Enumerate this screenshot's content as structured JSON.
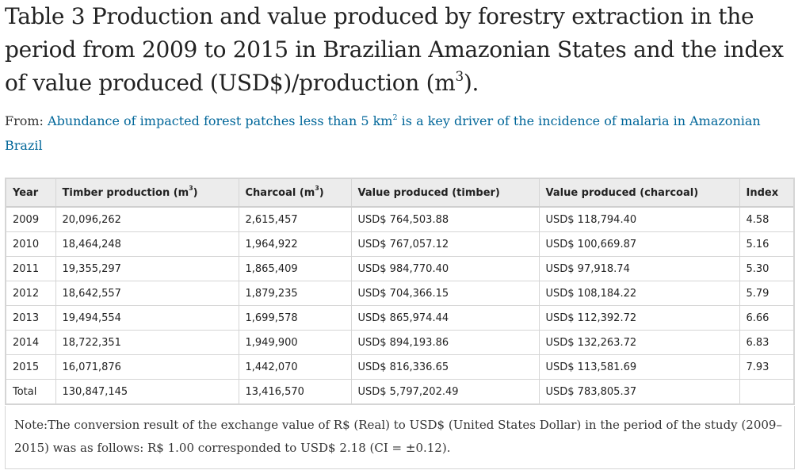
{
  "title": {
    "part1": "Table 3 Production and value produced by forestry extraction in the period from 2009 to 2015 in Brazilian Amazonian States and the index of value produced (USD$)/production (m",
    "sup": "3",
    "part2": ")."
  },
  "from": {
    "prefix": "From: ",
    "link_part1": "Abundance of impacted forest patches less than 5 km",
    "link_sup": "2",
    "link_part2": " is a key driver of the incidence of malaria in Amazonian Brazil"
  },
  "table": {
    "headers": {
      "year": "Year",
      "timber": "Timber production (m",
      "timber_sup": "3",
      "timber_close": ")",
      "charcoal": "Charcoal (m",
      "charcoal_sup": "3",
      "charcoal_close": ")",
      "value_timber": "Value produced (timber)",
      "value_charcoal": "Value produced (charcoal)",
      "index": "Index"
    },
    "rows": [
      [
        "2009",
        "20,096,262",
        "2,615,457",
        "USD$ 764,503.88",
        "USD$ 118,794.40",
        "4.58"
      ],
      [
        "2010",
        "18,464,248",
        "1,964,922",
        "USD$ 767,057.12",
        "USD$ 100,669.87",
        "5.16"
      ],
      [
        "2011",
        "19,355,297",
        "1,865,409",
        "USD$ 984,770.40",
        "USD$ 97,918.74",
        "5.30"
      ],
      [
        "2012",
        "18,642,557",
        "1,879,235",
        "USD$ 704,366.15",
        "USD$ 108,184.22",
        "5.79"
      ],
      [
        "2013",
        "19,494,554",
        "1,699,578",
        "USD$ 865,974.44",
        "USD$ 112,392.72",
        "6.66"
      ],
      [
        "2014",
        "18,722,351",
        "1,949,900",
        "USD$ 894,193.86",
        "USD$ 132,263.72",
        "6.83"
      ],
      [
        "2015",
        "16,071,876",
        "1,442,070",
        "USD$ 816,336.65",
        "USD$ 113,581.69",
        "7.93"
      ],
      [
        "Total",
        "130,847,145",
        "13,416,570",
        "USD$ 5,797,202.49",
        "USD$ 783,805.37",
        ""
      ]
    ]
  },
  "note": "Note:The conversion result of the exchange value of R$ (Real) to USD$ (United States Dollar) in the period of the study (2009–2015) was as follows: R$ 1.00 corresponded to USD$ 2.18 (CI = ±0.12).",
  "colors": {
    "link": "#006699",
    "header_bg": "#ececec",
    "border": "#d5d5d5"
  }
}
